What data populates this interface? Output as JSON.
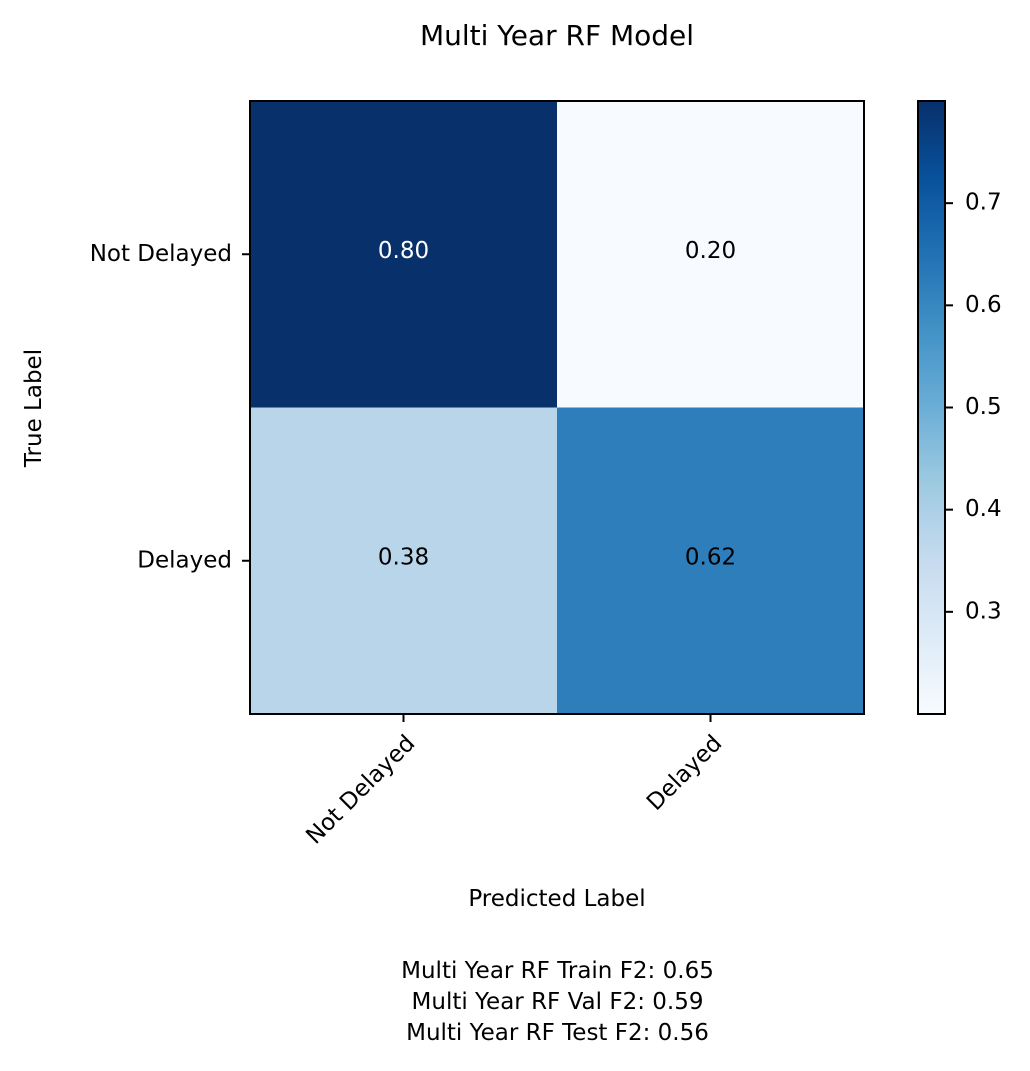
{
  "chart_data": {
    "type": "heatmap",
    "title": "Multi Year RF Model",
    "xlabel": "Predicted Label",
    "ylabel": "True Label",
    "x_categories": [
      "Not Delayed",
      "Delayed"
    ],
    "y_categories": [
      "Not Delayed",
      "Delayed"
    ],
    "values": [
      [
        0.8,
        0.2
      ],
      [
        0.38,
        0.62
      ]
    ],
    "cell_labels": [
      [
        "0.80",
        "0.20"
      ],
      [
        "0.38",
        "0.62"
      ]
    ],
    "colormap": "Blues",
    "color_range": [
      0.2,
      0.8
    ],
    "colorbar_ticks": [
      0.3,
      0.4,
      0.5,
      0.6,
      0.7
    ],
    "colorbar_tick_labels": [
      "0.3",
      "0.4",
      "0.5",
      "0.6",
      "0.7"
    ],
    "x_tick_rotation": 45,
    "grid": false,
    "cell_colors": [
      [
        "#08306b",
        "#f7fbff"
      ],
      [
        "#b9d5ea",
        "#2e7ebc"
      ]
    ],
    "cell_text_colors": [
      [
        "#ffffff",
        "#000000"
      ],
      [
        "#000000",
        "#000000"
      ]
    ]
  },
  "footer": {
    "lines": [
      "Multi Year RF Train F2: 0.65",
      "Multi Year RF Val F2: 0.59",
      "Multi Year RF Test F2: 0.56"
    ]
  }
}
